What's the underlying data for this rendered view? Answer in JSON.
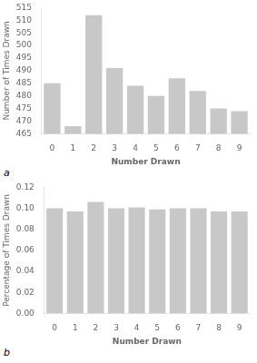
{
  "chart_data": [
    {
      "type": "bar",
      "categories": [
        0,
        1,
        2,
        3,
        4,
        5,
        6,
        7,
        8,
        9
      ],
      "values": [
        485,
        468,
        512,
        491,
        484,
        480,
        487,
        482,
        475,
        474
      ],
      "color": "#c8c8c8",
      "xlabel": "Number Drawn",
      "ylabel": "Number of Times Drawn",
      "ylim": [
        465,
        515
      ],
      "yticks": [
        465,
        470,
        475,
        480,
        485,
        490,
        495,
        500,
        505,
        510,
        515
      ],
      "grid": false,
      "annotation": "a"
    },
    {
      "type": "bar",
      "categories": [
        0,
        1,
        2,
        3,
        4,
        5,
        6,
        7,
        8,
        9
      ],
      "values": [
        0.1,
        0.097,
        0.106,
        0.1,
        0.101,
        0.099,
        0.1,
        0.1,
        0.097,
        0.097
      ],
      "color": "#c8c8c8",
      "xlabel": "Number Drawn",
      "ylabel": "Percentage of Times Drawn",
      "ylim": [
        0.0,
        0.12
      ],
      "yticks": [
        {
          "value": 0,
          "label": "0.00"
        },
        0.02,
        0.04,
        0.06,
        0.08,
        {
          "value": 0.1,
          "label": "0.10"
        },
        0.12
      ],
      "grid": false,
      "annotation": "b"
    }
  ]
}
